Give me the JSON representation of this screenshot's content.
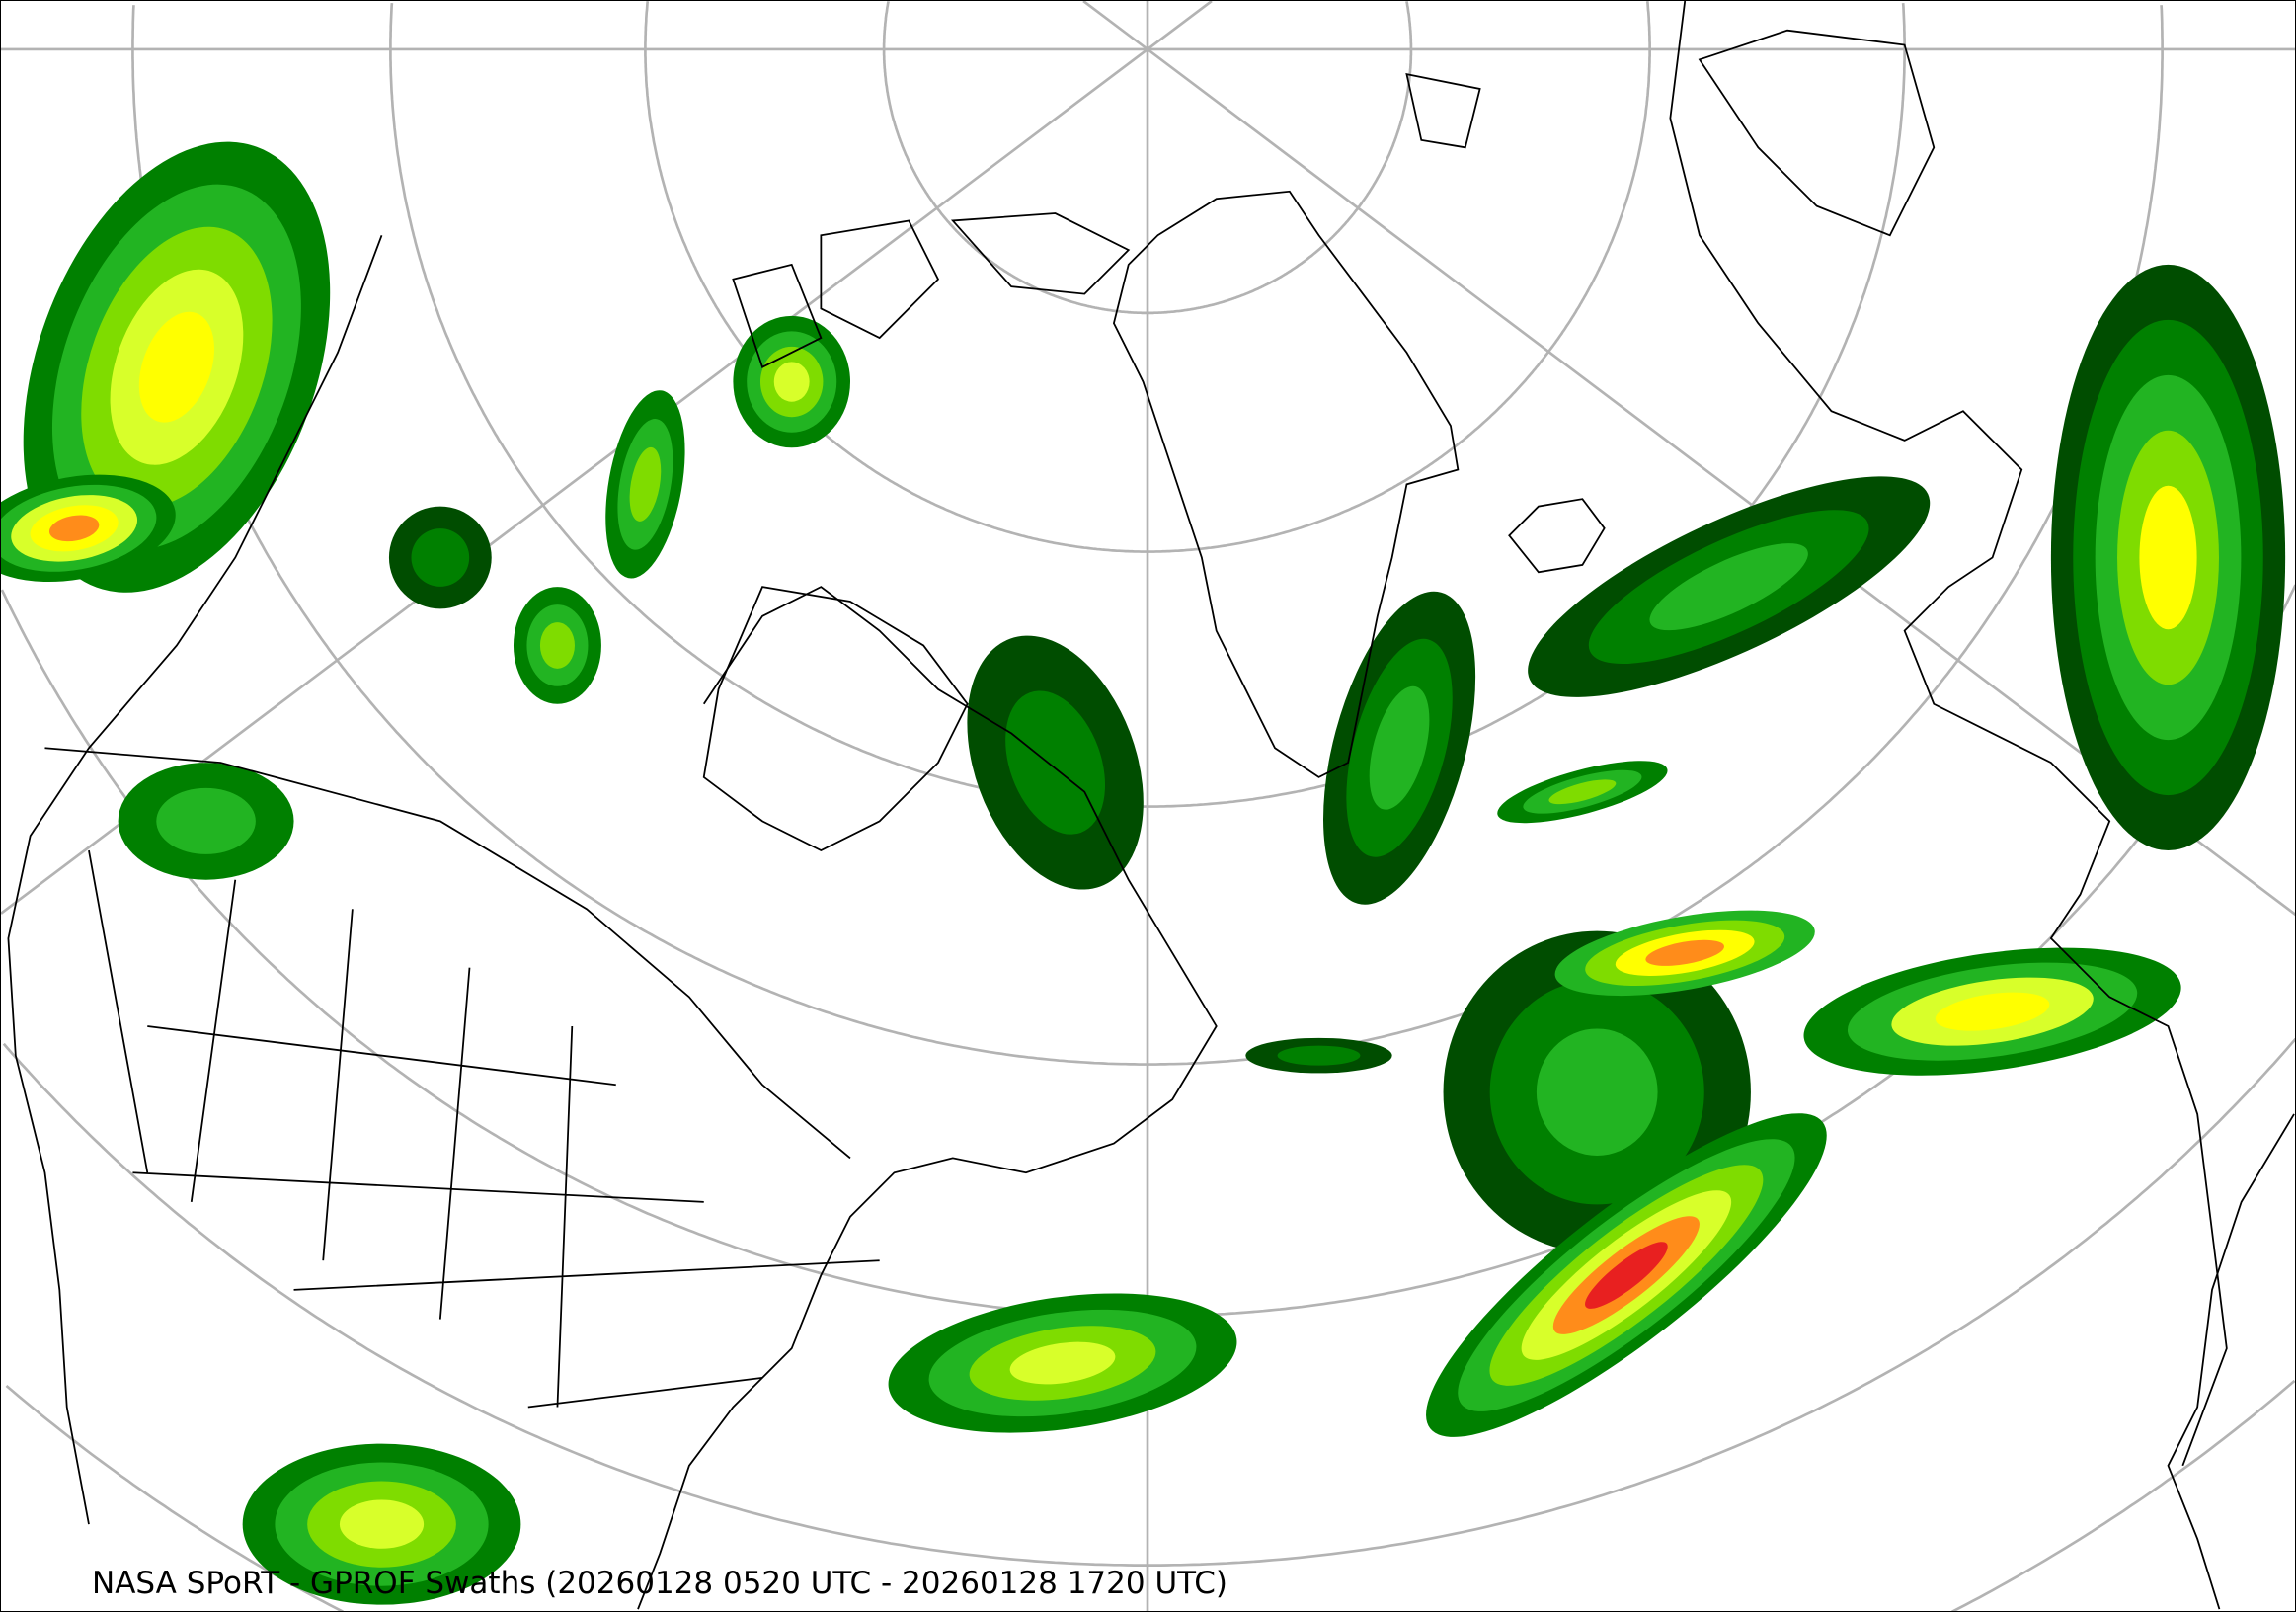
{
  "caption": "NASA SPoRT - GPROF Swaths (20260128 0520 UTC - 20260128 1720 UTC)",
  "map": {
    "projection": "north-polar-stereographic",
    "graticule_color": "#b3b3b3",
    "coastline_color": "#000000",
    "precip_colors": [
      "#004d00",
      "#008000",
      "#22b422",
      "#7fdc00",
      "#d8ff2a",
      "#ffff00",
      "#ff8c1a",
      "#e82020"
    ]
  }
}
